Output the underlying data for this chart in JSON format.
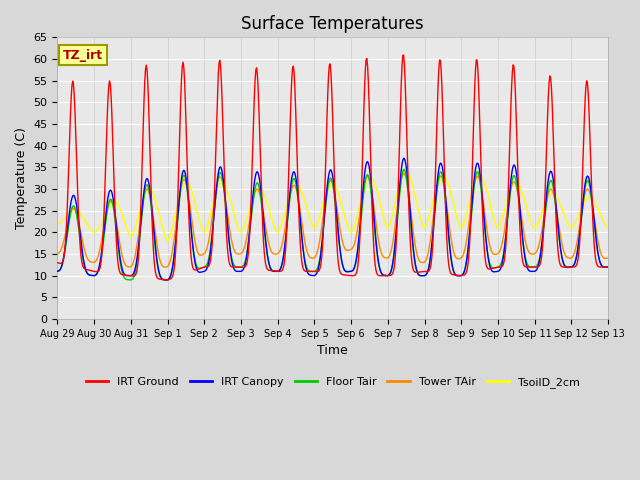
{
  "title": "Surface Temperatures",
  "ylabel": "Temperature (C)",
  "xlabel": "Time",
  "legend_label": "TZ_irt",
  "series": {
    "IRT Ground": {
      "color": "#ff0000"
    },
    "IRT Canopy": {
      "color": "#0000ff"
    },
    "Floor Tair": {
      "color": "#00cc00"
    },
    "Tower TAir": {
      "color": "#ff8800"
    },
    "TsoilD_2cm": {
      "color": "#ffff00"
    }
  },
  "ylim": [
    0,
    65
  ],
  "yticks": [
    0,
    5,
    10,
    15,
    20,
    25,
    30,
    35,
    40,
    45,
    50,
    55,
    60,
    65
  ],
  "tick_labels": [
    "Aug 29",
    "Aug 30",
    "Aug 31",
    "Sep 1",
    "Sep 2",
    "Sep 3",
    "Sep 4",
    "Sep 5",
    "Sep 6",
    "Sep 7",
    "Sep 8",
    "Sep 9",
    "Sep 10",
    "Sep 11",
    "Sep 12",
    "Sep 13"
  ],
  "fig_width": 6.4,
  "fig_height": 4.8,
  "dpi": 100,
  "irt_ground_maxs": [
    57,
    52,
    59,
    58,
    61,
    58,
    58,
    59,
    59,
    62,
    60,
    60,
    60,
    57,
    55
  ],
  "irt_ground_mins": [
    13,
    11,
    10,
    9,
    12,
    12,
    11,
    11,
    10,
    10,
    11,
    10,
    12,
    12,
    12
  ],
  "irt_canopy_maxs": [
    29,
    28,
    32,
    33,
    36,
    34,
    34,
    34,
    35,
    38,
    36,
    36,
    36,
    35,
    33
  ],
  "irt_canopy_mins": [
    11,
    10,
    10,
    9,
    11,
    11,
    11,
    10,
    11,
    10,
    10,
    10,
    11,
    11,
    12
  ],
  "floor_maxs": [
    27,
    25,
    31,
    31,
    36,
    31,
    32,
    33,
    32,
    35,
    34,
    34,
    34,
    32,
    32
  ],
  "floor_mins": [
    11,
    10,
    9,
    9,
    12,
    12,
    11,
    11,
    11,
    10,
    10,
    10,
    12,
    12,
    12
  ],
  "tower_maxs": [
    26,
    25,
    30,
    30,
    35,
    30,
    30,
    32,
    32,
    34,
    33,
    33,
    33,
    30,
    30
  ],
  "tower_mins": [
    15,
    13,
    12,
    12,
    15,
    15,
    15,
    14,
    16,
    14,
    13,
    14,
    15,
    15,
    14
  ],
  "tsoil_maxs": [
    26,
    24,
    30,
    30,
    33,
    30,
    30,
    32,
    30,
    35,
    33,
    33,
    33,
    30,
    28
  ],
  "tsoil_mins": [
    22,
    20,
    19,
    18,
    20,
    20,
    20,
    21,
    20,
    21,
    21,
    21,
    21,
    21,
    21
  ]
}
